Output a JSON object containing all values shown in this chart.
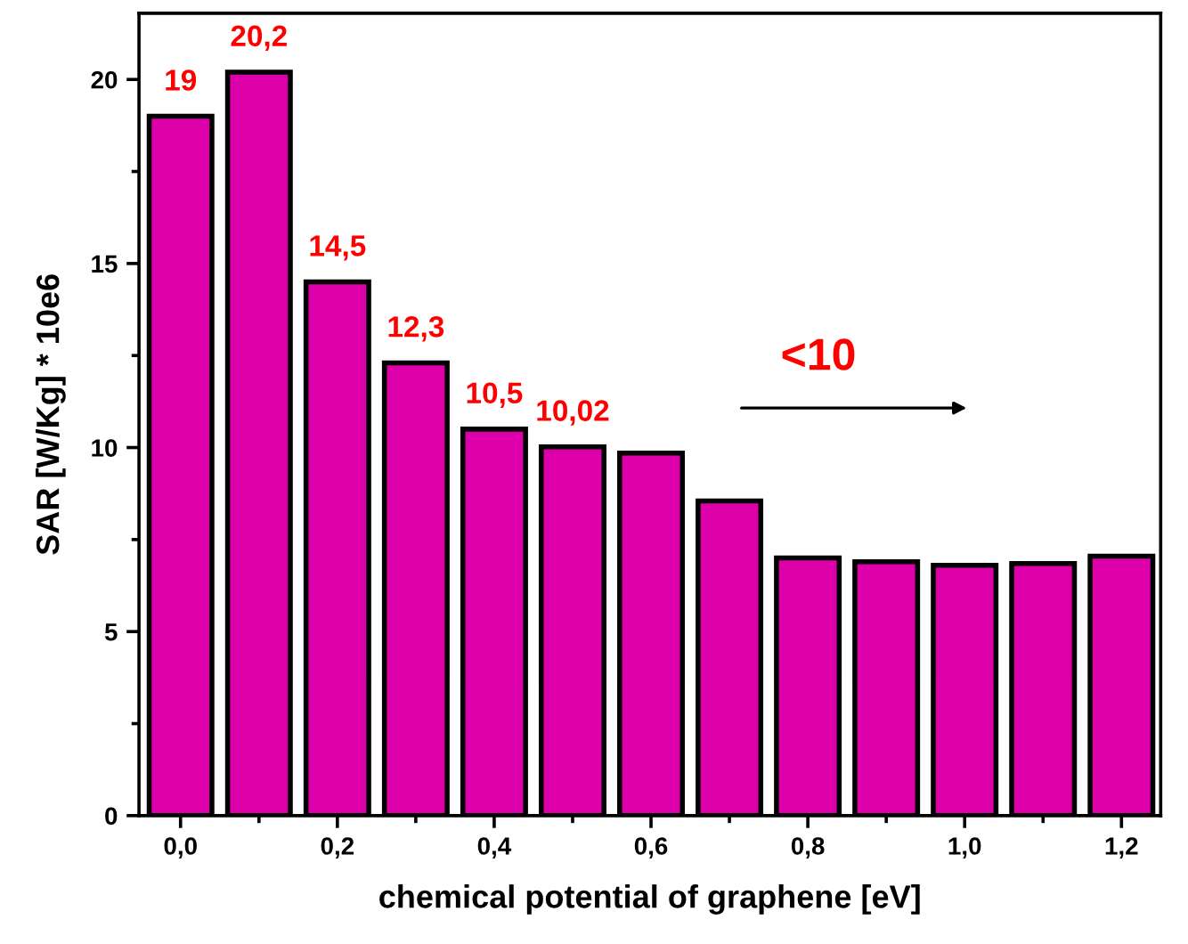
{
  "chart_data": {
    "type": "bar",
    "xlabel": "chemical potential of graphene [eV]",
    "ylabel": "SAR [W/Kg] * 10e6",
    "x": [
      0.0,
      0.1,
      0.2,
      0.3,
      0.4,
      0.5,
      0.6,
      0.7,
      0.8,
      0.9,
      1.0,
      1.1,
      1.2
    ],
    "values": [
      19,
      20.2,
      14.5,
      12.3,
      10.5,
      10.02,
      9.85,
      8.55,
      7.0,
      6.9,
      6.8,
      6.85,
      7.05
    ],
    "value_labels": [
      "19",
      "20,2",
      "14,5",
      "12,3",
      "10,5",
      "10,02",
      null,
      null,
      null,
      null,
      null,
      null,
      null
    ],
    "color": "#dd00aa",
    "xlim": [
      -0.053,
      1.25
    ],
    "ylim": [
      0,
      21.8
    ],
    "xticks": [
      {
        "value": 0.0,
        "label": "0,0"
      },
      {
        "value": 0.2,
        "label": "0,2"
      },
      {
        "value": 0.4,
        "label": "0,4"
      },
      {
        "value": 0.6,
        "label": "0,6"
      },
      {
        "value": 0.8,
        "label": "0,8"
      },
      {
        "value": 1.0,
        "label": "1,0"
      },
      {
        "value": 1.2,
        "label": "1,2"
      }
    ],
    "yticks": [
      0,
      5,
      10,
      15,
      20
    ],
    "grid": false,
    "annotations": [
      "<10"
    ]
  }
}
